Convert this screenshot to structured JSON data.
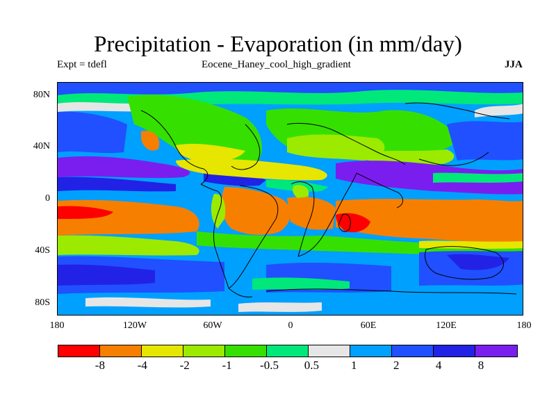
{
  "title": "Precipitation - Evaporation (in mm/day)",
  "subtitle_left": "Expt = tdefl",
  "subtitle_center": "Eocene_Haney_cool_high_gradient",
  "subtitle_right": "JJA",
  "y_ticks": [
    "80N",
    "40N",
    "0",
    "40S",
    "80S"
  ],
  "x_ticks": [
    "180",
    "120W",
    "60W",
    "0",
    "60E",
    "120E",
    "180"
  ],
  "legend": {
    "colors": [
      "#ff0000",
      "#f77f00",
      "#e6e600",
      "#9bea00",
      "#35e000",
      "#00e87a",
      "#e6e6e6",
      "#00a0ff",
      "#2050ff",
      "#2222e6",
      "#7a1eef"
    ],
    "labels": [
      "-8",
      "-4",
      "-2",
      "-1",
      "-0.5",
      "0.5",
      "1",
      "2",
      "4",
      "8"
    ]
  },
  "colors": {
    "strong_negative": "#ff0000",
    "negative": "#f77f00",
    "mild_negative": "#e6e600",
    "slight_negative": "#9bea00",
    "near_zero_neg": "#35e000",
    "near_zero": "#00e87a",
    "neutral": "#e6e6e6",
    "slight_positive": "#00a0ff",
    "positive": "#2050ff",
    "strong_positive": "#2222e6",
    "very_strong_positive": "#7a1eef"
  }
}
